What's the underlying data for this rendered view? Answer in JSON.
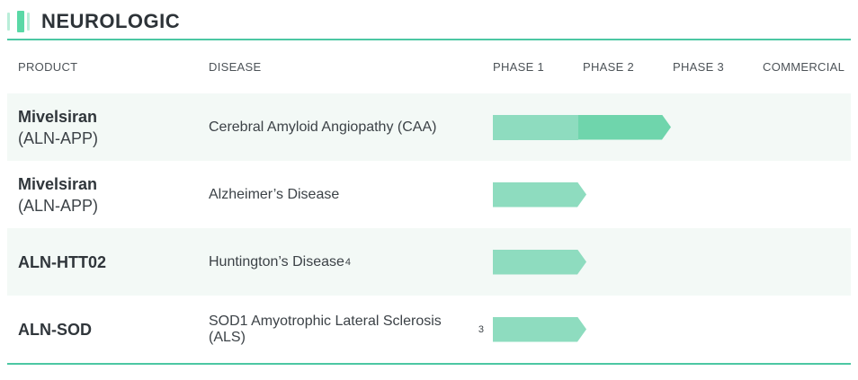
{
  "section": {
    "title": "NEUROLOGIC"
  },
  "table": {
    "columns": [
      "PRODUCT",
      "DISEASE",
      "PHASE 1",
      "PHASE 2",
      "PHASE 3",
      "COMMERCIAL"
    ],
    "rows": [
      {
        "product": "Mivelsiran",
        "product_sub": "(ALN-APP)",
        "disease": "Cerebral Amyloid Angiopathy (CAA)",
        "footnote": "",
        "phase_reached": "PHASE 2"
      },
      {
        "product": "Mivelsiran",
        "product_sub": "(ALN-APP)",
        "disease": "Alzheimer’s Disease",
        "footnote": "",
        "phase_reached": "PHASE 1"
      },
      {
        "product": "ALN-HTT02",
        "product_sub": "",
        "disease": "Huntington’s Disease",
        "footnote": "4",
        "phase_reached": "PHASE 1"
      },
      {
        "product": "ALN-SOD",
        "product_sub": "",
        "disease": "SOD1 Amyotrophic Lateral Sclerosis (ALS)",
        "footnote": "3",
        "phase_reached": "PHASE 1"
      }
    ]
  },
  "chart_data": {
    "type": "bar",
    "title": "NEUROLOGIC",
    "orientation": "horizontal",
    "categories": [
      "Mivelsiran (ALN-APP) — Cerebral Amyloid Angiopathy (CAA)",
      "Mivelsiran (ALN-APP) — Alzheimer’s Disease",
      "ALN-HTT02 — Huntington’s Disease",
      "ALN-SOD — SOD1 Amyotrophic Lateral Sclerosis (ALS)"
    ],
    "values": [
      2,
      1,
      1,
      1
    ],
    "value_meaning": "highest development phase reached (1 = Phase 1, 2 = Phase 2, 3 = Phase 3, 4 = Commercial)",
    "x_ticks": [
      "PHASE 1",
      "PHASE 2",
      "PHASE 3",
      "COMMERCIAL"
    ],
    "xlim": [
      0,
      4
    ],
    "legend": "none",
    "grid": false,
    "bar_style": "right-pointing arrow, segment per phase"
  },
  "colors": {
    "accent_teal": "#4cc7a3",
    "bar_light": "#8edcbf",
    "bar_dark": "#6fd5ac",
    "row_shaded": "#f3f9f6",
    "title_text": "#2d3338",
    "header_text": "#4d5358",
    "body_text": "#3c4247"
  }
}
